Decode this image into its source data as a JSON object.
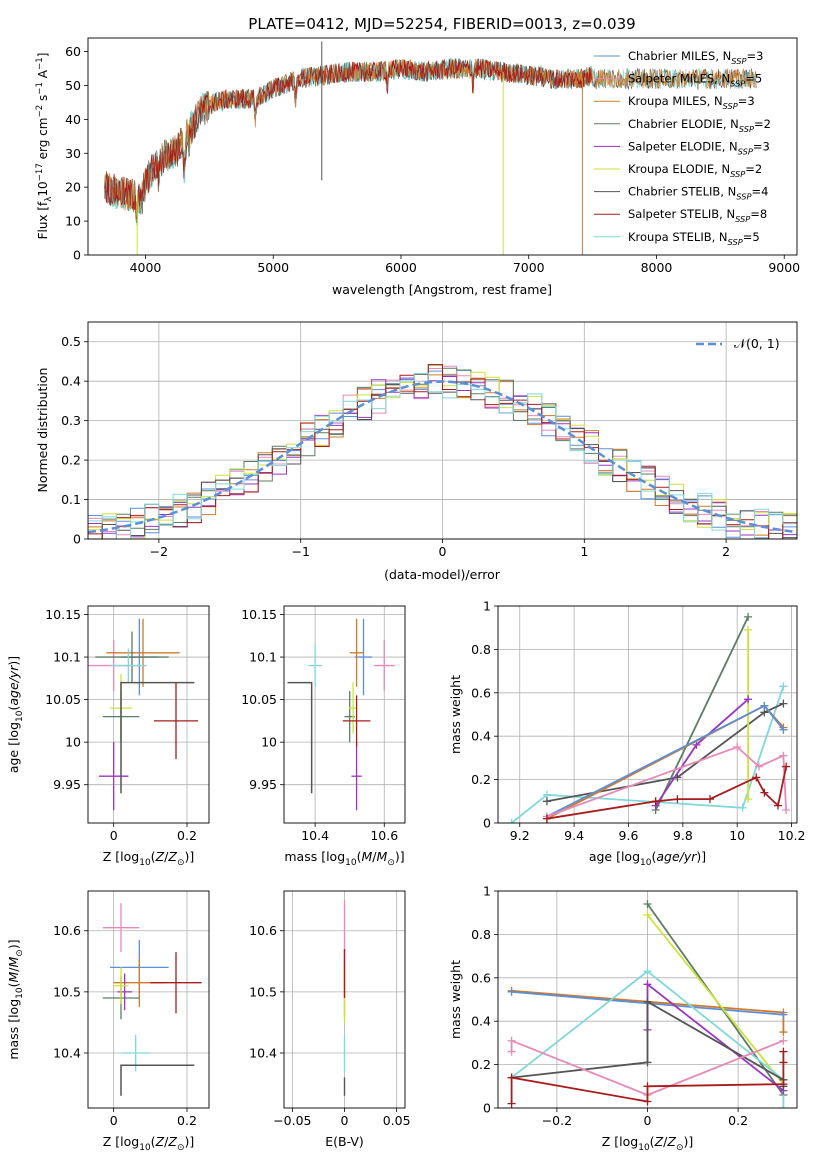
{
  "figure": {
    "title": "PLATE=0412, MJD=52254, FIBERID=0013, z=0.039"
  },
  "colors": {
    "Chabrier MILES": "#5b8fd9",
    "Salpeter MILES": "#e68ab8",
    "Kroupa MILES": "#d07a2a",
    "Chabrier ELODIE": "#5a7d64",
    "Salpeter ELODIE": "#9a35c0",
    "Kroupa ELODIE": "#cde23a",
    "Chabrier STELIB": "#555555",
    "Salpeter STELIB": "#a81c1c",
    "Kroupa STELIB": "#7fd8dc"
  },
  "chart_data": [
    {
      "id": "spectrum",
      "type": "line",
      "xlabel": "wavelength [Angstrom, rest frame]",
      "xlim": [
        3550,
        9100
      ],
      "ylim": [
        0,
        64
      ],
      "xticks": [
        4000,
        5000,
        6000,
        7000,
        8000,
        9000
      ],
      "yticks": [
        0,
        10,
        20,
        30,
        40,
        50,
        60
      ],
      "legend_position": "right",
      "legend": [
        "Chabrier MILES, N_SSP=3",
        "Salpeter MILES, N_SSP=5",
        "Kroupa MILES, N_SSP=3",
        "Chabrier ELODIE, N_SSP=2",
        "Salpeter ELODIE, N_SSP=3",
        "Kroupa ELODIE, N_SSP=2",
        "Chabrier STELIB, N_SSP=4",
        "Salpeter STELIB, N_SSP=8",
        "Kroupa STELIB, N_SSP=5"
      ],
      "continuum": {
        "x": [
          3680,
          3750,
          3850,
          3950,
          4050,
          4150,
          4250,
          4350,
          4450,
          4550,
          4650,
          4750,
          4850,
          5000,
          5200,
          5400,
          5600,
          5800,
          6000,
          6200,
          6400,
          6600,
          6800,
          7000,
          7200,
          7400,
          7500
        ],
        "y": [
          20,
          19,
          18,
          17,
          25,
          29,
          31,
          37,
          43,
          45,
          46,
          46,
          46,
          49,
          52,
          53,
          54,
          54,
          55,
          54,
          55,
          55,
          54,
          53,
          52,
          52,
          53
        ]
      },
      "absorption_lines": [
        {
          "x": 3933,
          "y": 12
        },
        {
          "x": 3968,
          "y": 14
        },
        {
          "x": 4101,
          "y": 22
        },
        {
          "x": 4305,
          "y": 24
        },
        {
          "x": 4340,
          "y": 33
        },
        {
          "x": 4861,
          "y": 40
        },
        {
          "x": 5175,
          "y": 45
        },
        {
          "x": 5893,
          "y": 50
        },
        {
          "x": 6563,
          "y": 50
        }
      ],
      "spikes": [
        {
          "x": 3935,
          "y_low": 0,
          "series": "Kroupa ELODIE"
        },
        {
          "x": 5380,
          "y_low": 22,
          "y_high": 63,
          "series": "Chabrier STELIB"
        },
        {
          "x": 6800,
          "y_low": 0,
          "series": "Kroupa ELODIE"
        },
        {
          "x": 7420,
          "y_low": 0,
          "series": "Kroupa MILES"
        }
      ]
    },
    {
      "id": "residuals",
      "type": "histogram",
      "xlabel": "(data-model)/error",
      "ylabel": "Normed distribution",
      "xlim": [
        -2.5,
        2.5
      ],
      "ylim": [
        0,
        0.55
      ],
      "xticks": [
        -2,
        -1,
        0,
        1,
        2
      ],
      "yticks": [
        0.0,
        0.1,
        0.2,
        0.3,
        0.4,
        0.5
      ],
      "grid": true,
      "bin_width": 0.1,
      "reference_label": "𝒩(0, 1)",
      "legend_position": "top-right",
      "reference": "standard normal density"
    },
    {
      "id": "age-vs-Z",
      "type": "scatter",
      "xlabel": "Z [log10(Z/Z⊙)]",
      "ylabel": "age [log10(age/yr)]",
      "xlim": [
        -0.07,
        0.26
      ],
      "ylim": [
        9.905,
        10.16
      ],
      "xticks": [
        0.0,
        0.2
      ],
      "yticks": [
        9.95,
        10.0,
        10.05,
        10.1,
        10.15
      ],
      "grid": true,
      "points": [
        {
          "series": "Chabrier MILES",
          "x": 0.07,
          "y": 10.1,
          "xe": 0.05,
          "ye": 0.045
        },
        {
          "series": "Salpeter MILES",
          "x": 0.0,
          "y": 10.09,
          "xe": 0.07,
          "ye": 0.03
        },
        {
          "series": "Kroupa MILES",
          "x": 0.08,
          "y": 10.105,
          "xe": 0.1,
          "ye": 0.04
        },
        {
          "series": "Chabrier ELODIE",
          "x": 0.05,
          "y": 10.1,
          "xe": 0.1,
          "ye": 0.03
        },
        {
          "series": "Chabrier ELODIE",
          "x": 0.02,
          "y": 10.03,
          "xe": 0.05,
          "ye": 0.03
        },
        {
          "series": "Salpeter ELODIE",
          "x": 0.0,
          "y": 9.96,
          "xe": 0.04,
          "ye": 0.04
        },
        {
          "series": "Kroupa ELODIE",
          "x": 0.02,
          "y": 10.04,
          "xe": 0.03,
          "ye": 0.04
        },
        {
          "series": "Salpeter STELIB",
          "x": 0.17,
          "y": 10.025,
          "xe": 0.06,
          "ye": 0.045
        },
        {
          "series": "Kroupa STELIB",
          "x": 0.04,
          "y": 10.09,
          "xe": 0.05,
          "ye": 0.02
        }
      ],
      "corner": {
        "series": "Chabrier STELIB",
        "x": 0.02,
        "y": 10.07,
        "x_end": 0.22,
        "y_end": 9.94
      }
    },
    {
      "id": "age-vs-mass",
      "type": "scatter",
      "xlabel": "mass [log10(M/M⊙)]",
      "xlim": [
        10.31,
        10.66
      ],
      "ylim": [
        9.905,
        10.16
      ],
      "xticks": [
        10.4,
        10.6
      ],
      "yticks": [
        9.95,
        10.0,
        10.05,
        10.1,
        10.15
      ],
      "grid": true,
      "points": [
        {
          "series": "Chabrier MILES",
          "x": 10.54,
          "y": 10.1,
          "xe": 0.025,
          "ye": 0.045
        },
        {
          "series": "Salpeter MILES",
          "x": 10.6,
          "y": 10.09,
          "xe": 0.03,
          "ye": 0.03
        },
        {
          "series": "Kroupa MILES",
          "x": 10.52,
          "y": 10.105,
          "xe": 0.02,
          "ye": 0.04
        },
        {
          "series": "Chabrier ELODIE",
          "x": 10.5,
          "y": 10.03,
          "xe": 0.015,
          "ye": 0.03
        },
        {
          "series": "Salpeter ELODIE",
          "x": 10.52,
          "y": 9.96,
          "xe": 0.015,
          "ye": 0.04
        },
        {
          "series": "Kroupa ELODIE",
          "x": 10.51,
          "y": 10.04,
          "xe": 0.012,
          "ye": 0.03
        },
        {
          "series": "Salpeter STELIB",
          "x": 10.52,
          "y": 10.025,
          "xe": 0.04,
          "ye": 0.03
        },
        {
          "series": "Kroupa STELIB",
          "x": 10.4,
          "y": 10.09,
          "xe": 0.02,
          "ye": 0.025
        }
      ],
      "corner": {
        "series": "Chabrier STELIB",
        "x": 10.39,
        "y": 10.07,
        "x_end": 10.32,
        "y_end": 9.94
      }
    },
    {
      "id": "weight-vs-age",
      "type": "line",
      "xlabel": "age [log10(age/yr)]",
      "ylabel": "mass weight",
      "xlim": [
        9.12,
        10.22
      ],
      "ylim": [
        0,
        1.0
      ],
      "xticks": [
        9.2,
        9.4,
        9.6,
        9.8,
        10.0,
        10.2
      ],
      "yticks": [
        0.0,
        0.2,
        0.4,
        0.6,
        0.8,
        1.0
      ],
      "grid": true,
      "series": [
        {
          "series": "Kroupa STELIB",
          "x": [
            9.17,
            9.3,
            10.02,
            10.17
          ],
          "y": [
            0.0,
            0.13,
            0.07,
            0.63
          ]
        },
        {
          "series": "Chabrier STELIB",
          "x": [
            9.3,
            9.78,
            10.1,
            10.17
          ],
          "y": [
            0.1,
            0.21,
            0.51,
            0.55
          ]
        },
        {
          "series": "Chabrier ELODIE",
          "x": [
            9.7,
            10.04
          ],
          "y": [
            0.06,
            0.95
          ]
        },
        {
          "series": "Kroupa ELODIE",
          "x": [
            10.04,
            10.04
          ],
          "y": [
            0.11,
            0.89
          ]
        },
        {
          "series": "Salpeter ELODIE",
          "x": [
            9.7,
            9.85,
            10.04
          ],
          "y": [
            0.08,
            0.36,
            0.57
          ]
        },
        {
          "series": "Kroupa MILES",
          "x": [
            9.3,
            10.1,
            10.17
          ],
          "y": [
            0.02,
            0.54,
            0.44
          ]
        },
        {
          "series": "Chabrier MILES",
          "x": [
            9.3,
            10.1,
            10.17
          ],
          "y": [
            0.03,
            0.54,
            0.43
          ]
        },
        {
          "series": "Salpeter MILES",
          "x": [
            9.3,
            10.0,
            10.08,
            10.17,
            10.18
          ],
          "y": [
            0.03,
            0.35,
            0.26,
            0.31,
            0.06
          ]
        },
        {
          "series": "Salpeter STELIB",
          "x": [
            9.3,
            9.7,
            9.78,
            9.9,
            10.07,
            10.1,
            10.15,
            10.18
          ],
          "y": [
            0.02,
            0.1,
            0.11,
            0.11,
            0.21,
            0.14,
            0.08,
            0.26
          ]
        }
      ]
    },
    {
      "id": "mass-vs-Z",
      "type": "scatter",
      "xlabel": "Z [log10(Z/Z⊙)]",
      "ylabel": "mass [log10(M/M⊙)]",
      "xlim": [
        -0.07,
        0.26
      ],
      "ylim": [
        10.31,
        10.665
      ],
      "xticks": [
        0.0,
        0.2
      ],
      "yticks": [
        10.4,
        10.5,
        10.6
      ],
      "grid": true,
      "points": [
        {
          "series": "Chabrier MILES",
          "x": 0.07,
          "y": 10.54,
          "xe": 0.08,
          "ye": 0.045
        },
        {
          "series": "Salpeter MILES",
          "x": 0.02,
          "y": 10.605,
          "xe": 0.05,
          "ye": 0.04
        },
        {
          "series": "Kroupa MILES",
          "x": 0.07,
          "y": 10.515,
          "xe": 0.07,
          "ye": 0.04
        },
        {
          "series": "Chabrier ELODIE",
          "x": 0.02,
          "y": 10.49,
          "xe": 0.05,
          "ye": 0.035
        },
        {
          "series": "Salpeter ELODIE",
          "x": 0.03,
          "y": 10.5,
          "xe": 0.02,
          "ye": 0.03
        },
        {
          "series": "Kroupa ELODIE",
          "x": 0.02,
          "y": 10.51,
          "xe": 0.02,
          "ye": 0.03
        },
        {
          "series": "Salpeter STELIB",
          "x": 0.17,
          "y": 10.515,
          "xe": 0.07,
          "ye": 0.05
        },
        {
          "series": "Kroupa STELIB",
          "x": 0.06,
          "y": 10.4,
          "xe": 0.04,
          "ye": 0.03
        }
      ],
      "corner": {
        "series": "Chabrier STELIB",
        "x": 0.02,
        "y": 10.38,
        "x_end": 0.22,
        "y_end": 10.33
      }
    },
    {
      "id": "mass-vs-EBV",
      "type": "scatter",
      "xlabel": "E(B-V)",
      "xlim": [
        -0.058,
        0.058
      ],
      "ylim": [
        10.31,
        10.665
      ],
      "xticks": [
        -0.05,
        0.0,
        0.05
      ],
      "yticks": [
        10.4,
        10.5,
        10.6
      ],
      "grid": true,
      "vlines": [
        {
          "series": "Salpeter MILES",
          "y": [
            10.46,
            10.65
          ]
        },
        {
          "series": "Kroupa ELODIE",
          "y": [
            10.45,
            10.55
          ]
        },
        {
          "series": "Salpeter STELIB",
          "y": [
            10.49,
            10.57
          ]
        },
        {
          "series": "Kroupa STELIB",
          "y": [
            10.37,
            10.43
          ]
        },
        {
          "series": "Chabrier STELIB",
          "y": [
            10.33,
            10.36
          ]
        }
      ]
    },
    {
      "id": "weight-vs-Z",
      "type": "line",
      "xlabel": "Z [log10(Z/Z⊙)]",
      "ylabel": "mass weight",
      "xlim": [
        -0.33,
        0.33
      ],
      "ylim": [
        0,
        1.0
      ],
      "xticks": [
        -0.2,
        0.0,
        0.2
      ],
      "yticks": [
        0.0,
        0.2,
        0.4,
        0.6,
        0.8,
        1.0
      ],
      "grid": true,
      "series": [
        {
          "series": "Kroupa MILES",
          "x": [
            -0.3,
            0.3,
            0.3
          ],
          "y": [
            0.54,
            0.44,
            0.35
          ]
        },
        {
          "series": "Chabrier MILES",
          "x": [
            -0.3,
            0.3
          ],
          "y": [
            0.535,
            0.43
          ]
        },
        {
          "series": "Chabrier ELODIE",
          "x": [
            0.0,
            0.3
          ],
          "y": [
            0.94,
            0.06
          ]
        },
        {
          "series": "Kroupa ELODIE",
          "x": [
            0.0,
            0.3
          ],
          "y": [
            0.89,
            0.11
          ]
        },
        {
          "series": "Kroupa STELIB",
          "x": [
            -0.3,
            0.0,
            0.3,
            0.3
          ],
          "y": [
            0.14,
            0.63,
            0.13,
            0.0
          ]
        },
        {
          "series": "Salpeter ELODIE",
          "x": [
            0.0,
            0.0,
            0.3
          ],
          "y": [
            0.36,
            0.57,
            0.08
          ]
        },
        {
          "series": "Chabrier STELIB",
          "x": [
            -0.3,
            0.0,
            0.0,
            0.3,
            0.3
          ],
          "y": [
            0.14,
            0.21,
            0.49,
            0.13,
            0.1
          ]
        },
        {
          "series": "Salpeter MILES",
          "x": [
            -0.3,
            -0.3,
            0.0,
            0.3
          ],
          "y": [
            0.26,
            0.31,
            0.06,
            0.31
          ]
        },
        {
          "series": "Salpeter STELIB",
          "x": [
            -0.3,
            -0.3,
            0.0,
            0.0,
            0.3,
            0.3,
            0.3
          ],
          "y": [
            0.02,
            0.14,
            0.03,
            0.1,
            0.11,
            0.26,
            0.21
          ]
        }
      ]
    }
  ]
}
